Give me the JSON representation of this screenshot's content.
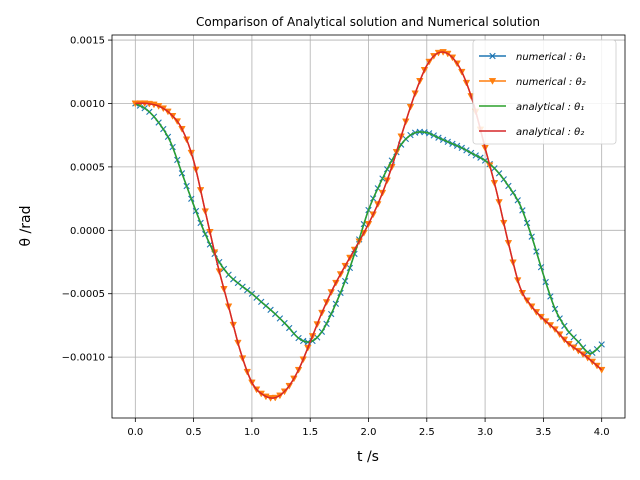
{
  "chart_data": {
    "type": "line",
    "title": "Comparison of Analytical solution and Numerical solution",
    "xlabel": "t /s",
    "ylabel": "θ /rad",
    "xlim": [
      -0.2,
      4.2
    ],
    "ylim": [
      -0.00148,
      0.00154
    ],
    "xticks": [
      0.0,
      0.5,
      1.0,
      1.5,
      2.0,
      2.5,
      3.0,
      3.5,
      4.0
    ],
    "xtick_labels": [
      "0.0",
      "0.5",
      "1.0",
      "1.5",
      "2.0",
      "2.5",
      "3.0",
      "3.5",
      "4.0"
    ],
    "yticks": [
      -0.001,
      -0.0005,
      0.0,
      0.0005,
      0.001,
      0.0015
    ],
    "ytick_labels": [
      "−0.0010",
      "−0.0005",
      "0.0000",
      "0.0005",
      "0.0010",
      "0.0015"
    ],
    "grid": true,
    "legend_position": "top-right",
    "series": [
      {
        "name": "numerical : θ1",
        "legend_label": "numerical : θ₁",
        "color": "#1f77b4",
        "marker": "x",
        "x": [
          0.0,
          0.1,
          0.2,
          0.3,
          0.4,
          0.5,
          0.6,
          0.7,
          0.8,
          0.9,
          1.0,
          1.1,
          1.2,
          1.3,
          1.4,
          1.5,
          1.6,
          1.7,
          1.8,
          1.9,
          2.0,
          2.1,
          2.2,
          2.3,
          2.4,
          2.5,
          2.6,
          2.7,
          2.8,
          2.9,
          3.0,
          3.1,
          3.2,
          3.3,
          3.4,
          3.5,
          3.6,
          3.7,
          3.8,
          3.9,
          4.0
        ],
        "y": [
          0.001,
          0.00095,
          0.00085,
          0.0007,
          0.00045,
          0.0002,
          -3e-05,
          -0.00022,
          -0.00035,
          -0.00043,
          -0.0005,
          -0.00058,
          -0.00066,
          -0.00075,
          -0.00085,
          -0.00088,
          -0.0008,
          -0.00062,
          -0.0004,
          -0.00013,
          0.00016,
          0.00037,
          0.00055,
          0.0007,
          0.00077,
          0.00077,
          0.00073,
          0.00069,
          0.00065,
          0.0006,
          0.00055,
          0.00047,
          0.00035,
          0.0002,
          -5e-05,
          -0.00035,
          -0.00062,
          -0.00078,
          -0.00088,
          -0.00097,
          -0.0009
        ]
      },
      {
        "name": "numerical : θ2",
        "legend_label": "numerical : θ₂",
        "color": "#ff7f0e",
        "marker": "v",
        "x": [
          0.0,
          0.1,
          0.2,
          0.3,
          0.4,
          0.5,
          0.6,
          0.7,
          0.8,
          0.9,
          1.0,
          1.1,
          1.2,
          1.3,
          1.4,
          1.5,
          1.6,
          1.7,
          1.8,
          1.9,
          2.0,
          2.1,
          2.2,
          2.3,
          2.4,
          2.5,
          2.6,
          2.7,
          2.8,
          2.9,
          3.0,
          3.1,
          3.2,
          3.3,
          3.4,
          3.5,
          3.6,
          3.7,
          3.8,
          3.9,
          4.0
        ],
        "y": [
          0.001,
          0.001,
          0.00098,
          0.00092,
          0.0008,
          0.00055,
          0.00015,
          -0.00025,
          -0.0006,
          -0.00095,
          -0.0012,
          -0.0013,
          -0.00132,
          -0.00125,
          -0.0011,
          -0.00088,
          -0.00065,
          -0.00045,
          -0.00028,
          -0.00012,
          5e-05,
          0.00025,
          0.0005,
          0.0008,
          0.00108,
          0.0013,
          0.0014,
          0.00138,
          0.00125,
          0.001,
          0.00065,
          0.0003,
          -0.0001,
          -0.00045,
          -0.0006,
          -0.0007,
          -0.00078,
          -0.00088,
          -0.00095,
          -0.00102,
          -0.0011
        ]
      },
      {
        "name": "analytical : θ1",
        "legend_label": "analytical : θ₁",
        "color": "#2ca02c",
        "marker": "none",
        "x": [
          0.0,
          0.1,
          0.2,
          0.3,
          0.4,
          0.5,
          0.6,
          0.7,
          0.8,
          0.9,
          1.0,
          1.1,
          1.2,
          1.3,
          1.4,
          1.5,
          1.6,
          1.7,
          1.8,
          1.9,
          2.0,
          2.1,
          2.2,
          2.3,
          2.4,
          2.5,
          2.6,
          2.7,
          2.8,
          2.9,
          3.0,
          3.1,
          3.2,
          3.3,
          3.4,
          3.5,
          3.6,
          3.7,
          3.8,
          3.9,
          4.0
        ],
        "y": [
          0.001,
          0.00095,
          0.00085,
          0.0007,
          0.00045,
          0.0002,
          -3e-05,
          -0.00022,
          -0.00035,
          -0.00043,
          -0.0005,
          -0.00058,
          -0.00066,
          -0.00075,
          -0.00085,
          -0.00088,
          -0.0008,
          -0.00062,
          -0.0004,
          -0.00013,
          0.00016,
          0.00037,
          0.00055,
          0.0007,
          0.00077,
          0.00077,
          0.00073,
          0.00069,
          0.00065,
          0.0006,
          0.00055,
          0.00047,
          0.00035,
          0.0002,
          -5e-05,
          -0.00035,
          -0.00062,
          -0.00078,
          -0.00088,
          -0.00097,
          -0.0009
        ]
      },
      {
        "name": "analytical : θ2",
        "legend_label": "analytical : θ₂",
        "color": "#d62728",
        "marker": "none",
        "x": [
          0.0,
          0.1,
          0.2,
          0.3,
          0.4,
          0.5,
          0.6,
          0.7,
          0.8,
          0.9,
          1.0,
          1.1,
          1.2,
          1.3,
          1.4,
          1.5,
          1.6,
          1.7,
          1.8,
          1.9,
          2.0,
          2.1,
          2.2,
          2.3,
          2.4,
          2.5,
          2.6,
          2.7,
          2.8,
          2.9,
          3.0,
          3.1,
          3.2,
          3.3,
          3.4,
          3.5,
          3.6,
          3.7,
          3.8,
          3.9,
          4.0
        ],
        "y": [
          0.001,
          0.001,
          0.00098,
          0.00092,
          0.0008,
          0.00055,
          0.00015,
          -0.00025,
          -0.0006,
          -0.00095,
          -0.0012,
          -0.0013,
          -0.00132,
          -0.00125,
          -0.0011,
          -0.00088,
          -0.00065,
          -0.00045,
          -0.00028,
          -0.00012,
          5e-05,
          0.00025,
          0.0005,
          0.0008,
          0.00108,
          0.0013,
          0.0014,
          0.00138,
          0.00125,
          0.001,
          0.00065,
          0.0003,
          -0.0001,
          -0.00045,
          -0.0006,
          -0.0007,
          -0.00078,
          -0.00088,
          -0.00095,
          -0.00102,
          -0.0011
        ]
      }
    ]
  }
}
